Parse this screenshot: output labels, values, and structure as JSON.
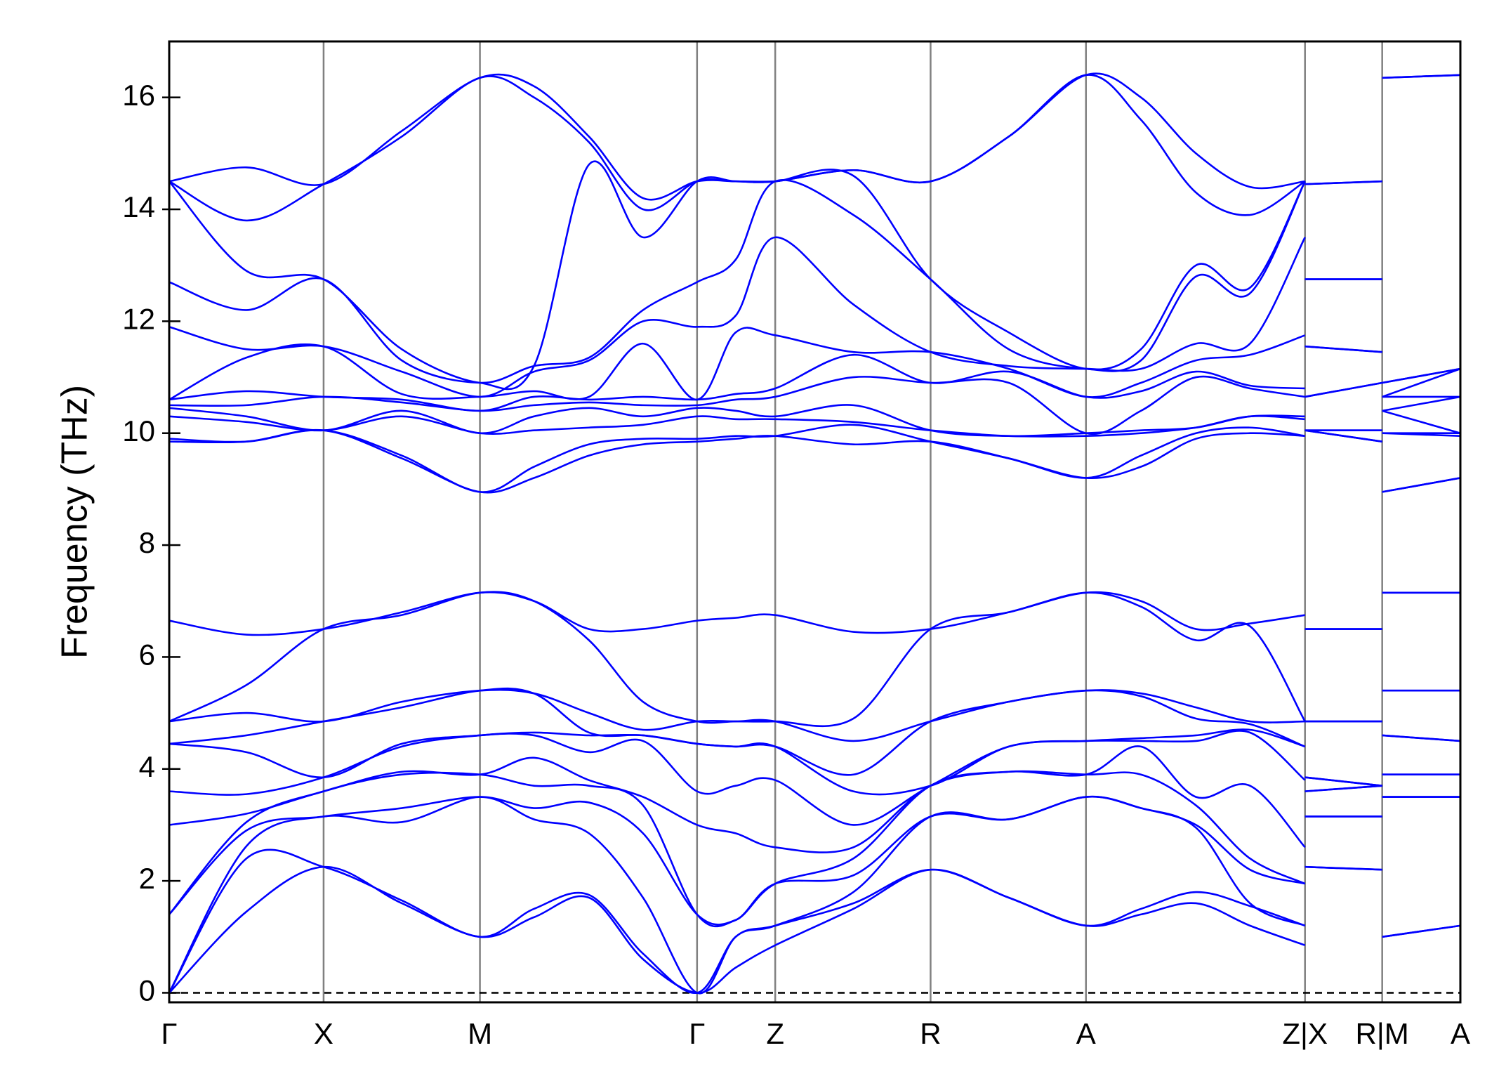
{
  "chart_data": {
    "type": "line",
    "y_label": "Frequency (THz)",
    "x": [
      0,
      0.8,
      1.6,
      2.41,
      3.22,
      3.78,
      4.35,
      4.91,
      5.47,
      5.87,
      6.28,
      7.09,
      7.89,
      8.7,
      9.5,
      10.07,
      10.64,
      11.2,
      11.77,
      11.77,
      11.77,
      12.57,
      12.57,
      12.57,
      13.38
    ],
    "xlim": [
      0,
      13.38
    ],
    "xticks": [
      {
        "value": 0,
        "label": "Γ"
      },
      {
        "value": 1.6,
        "label": "X"
      },
      {
        "value": 3.22,
        "label": "M"
      },
      {
        "value": 5.47,
        "label": "Γ"
      },
      {
        "value": 6.28,
        "label": "Z"
      },
      {
        "value": 7.89,
        "label": "R"
      },
      {
        "value": 9.5,
        "label": "A"
      },
      {
        "value": 11.77,
        "label": "Z|X"
      },
      {
        "value": 12.57,
        "label": "R|M"
      },
      {
        "value": 13.38,
        "label": "A"
      }
    ],
    "ylim": [
      -0.17,
      17.0
    ],
    "yticks": [
      0,
      2,
      4,
      6,
      8,
      10,
      12,
      14,
      16
    ],
    "xgrid": true,
    "grid_color": "#808080",
    "hlines": [
      {
        "value": 0,
        "style": "dashed",
        "color": "#000000"
      }
    ],
    "series": [
      {
        "color": "#0000ff",
        "values": [
          0,
          1.45,
          2.25,
          1.6,
          1,
          1.35,
          1.7,
          0.6,
          0,
          0.45,
          0.85,
          1.5,
          2.2,
          1.7,
          1.2,
          1.4,
          1.6,
          1.2,
          0.85,
          null,
          2.25,
          2.2,
          null,
          1,
          1.2
        ]
      },
      {
        "color": "#0000ff",
        "values": [
          0,
          2.4,
          2.25,
          1.65,
          1,
          1.5,
          1.75,
          0.7,
          0,
          1.0,
          1.2,
          1.6,
          2.2,
          1.7,
          1.2,
          1.5,
          1.8,
          1.55,
          1.2,
          null,
          2.25,
          2.2,
          null,
          1,
          1.2
        ]
      },
      {
        "color": "#0000ff",
        "values": [
          0,
          2.62,
          3.15,
          3.05,
          3.5,
          3.1,
          2.85,
          1.7,
          0,
          1.0,
          1.2,
          1.8,
          3.15,
          3.1,
          3.5,
          3.3,
          2.95,
          1.6,
          1.2,
          null,
          3.15,
          3.15,
          null,
          3.5,
          3.5
        ]
      },
      {
        "color": "#0000ff",
        "values": [
          1.4,
          2.9,
          3.15,
          3.3,
          3.5,
          3.3,
          3.4,
          2.85,
          1.4,
          1.3,
          1.95,
          2.1,
          3.15,
          3.1,
          3.5,
          3.3,
          3.0,
          2.2,
          1.95,
          null,
          3.15,
          3.15,
          null,
          3.5,
          3.5
        ]
      },
      {
        "color": "#0000ff",
        "values": [
          1.4,
          3.05,
          3.6,
          3.9,
          3.9,
          3.7,
          3.7,
          3.35,
          1.4,
          1.3,
          1.95,
          2.4,
          3.7,
          3.95,
          3.9,
          3.9,
          3.35,
          2.4,
          1.95,
          null,
          3.6,
          3.7,
          null,
          3.9,
          3.9
        ]
      },
      {
        "color": "#0000ff",
        "values": [
          3.0,
          3.2,
          3.6,
          3.95,
          3.9,
          4.2,
          3.8,
          3.5,
          3.0,
          2.85,
          2.6,
          2.6,
          3.7,
          3.95,
          3.9,
          4.4,
          3.5,
          3.7,
          2.6,
          null,
          3.6,
          3.7,
          null,
          3.9,
          3.9
        ]
      },
      {
        "color": "#0000ff",
        "values": [
          3.6,
          3.55,
          3.85,
          4.4,
          4.6,
          4.6,
          4.3,
          4.5,
          3.6,
          3.7,
          3.8,
          3.0,
          3.7,
          4.4,
          4.5,
          4.5,
          4.5,
          4.65,
          3.8,
          null,
          3.85,
          3.7,
          null,
          4.6,
          4.5
        ]
      },
      {
        "color": "#0000ff",
        "values": [
          4.45,
          4.3,
          3.85,
          4.45,
          4.6,
          4.65,
          4.6,
          4.6,
          4.45,
          4.4,
          4.4,
          3.6,
          3.7,
          4.4,
          4.5,
          4.55,
          4.6,
          4.7,
          4.4,
          null,
          3.85,
          3.7,
          null,
          4.6,
          4.5
        ]
      },
      {
        "color": "#0000ff",
        "values": [
          4.45,
          4.6,
          4.85,
          5.1,
          5.4,
          5.35,
          4.65,
          4.6,
          4.45,
          4.4,
          4.4,
          3.9,
          4.85,
          5.2,
          5.4,
          5.3,
          4.9,
          4.8,
          4.4,
          null,
          4.85,
          4.85,
          null,
          5.4,
          5.4
        ]
      },
      {
        "color": "#0000ff",
        "values": [
          4.85,
          5.0,
          4.85,
          5.2,
          5.4,
          5.35,
          5.0,
          4.7,
          4.85,
          4.85,
          4.85,
          4.5,
          4.85,
          5.2,
          5.4,
          5.35,
          5.1,
          4.85,
          4.85,
          null,
          4.85,
          4.85,
          null,
          5.4,
          5.4
        ]
      },
      {
        "color": "#0000ff",
        "values": [
          4.85,
          5.5,
          6.5,
          6.75,
          7.15,
          7.0,
          6.3,
          5.2,
          4.85,
          4.85,
          4.85,
          4.9,
          6.5,
          6.8,
          7.15,
          6.9,
          6.3,
          6.55,
          4.85,
          null,
          6.5,
          6.5,
          null,
          7.15,
          7.15
        ]
      },
      {
        "color": "#0000ff",
        "values": [
          6.65,
          6.4,
          6.5,
          6.8,
          7.15,
          7.0,
          6.5,
          6.5,
          6.65,
          6.7,
          6.75,
          6.45,
          6.5,
          6.8,
          7.15,
          7.0,
          6.5,
          6.6,
          6.75,
          null,
          6.5,
          6.5,
          null,
          7.15,
          7.15
        ]
      },
      {
        "color": "#0000ff",
        "values": [
          9.85,
          9.85,
          10.05,
          9.55,
          8.95,
          9.2,
          9.6,
          9.8,
          9.85,
          9.9,
          9.95,
          9.8,
          9.85,
          9.55,
          9.2,
          9.4,
          9.9,
          10.0,
          9.95,
          null,
          10.05,
          9.85,
          null,
          8.95,
          9.2
        ]
      },
      {
        "color": "#0000ff",
        "values": [
          9.9,
          9.85,
          10.05,
          9.6,
          8.95,
          9.4,
          9.8,
          9.9,
          9.9,
          9.95,
          9.95,
          10.15,
          9.85,
          9.55,
          9.2,
          9.6,
          10.0,
          10.1,
          9.95,
          null,
          10.05,
          9.85,
          null,
          8.95,
          9.2
        ]
      },
      {
        "color": "#0000ff",
        "values": [
          10.3,
          10.2,
          10.05,
          10.3,
          10,
          10.05,
          10.1,
          10.15,
          10.3,
          10.25,
          10.25,
          10.2,
          10.05,
          9.95,
          9.95,
          10.0,
          10.1,
          10.3,
          10.25,
          null,
          10.05,
          10.05,
          null,
          10,
          9.95
        ]
      },
      {
        "color": "#0000ff",
        "values": [
          10.45,
          10.3,
          10.05,
          10.4,
          10,
          10.3,
          10.45,
          10.3,
          10.45,
          10.4,
          10.3,
          10.5,
          10.05,
          9.95,
          10.0,
          10.05,
          10.1,
          10.3,
          10.3,
          null,
          10.05,
          10.05,
          null,
          10,
          10.0
        ]
      },
      {
        "color": "#0000ff",
        "values": [
          10.5,
          10.5,
          10.65,
          10.55,
          10.4,
          10.5,
          10.55,
          10.5,
          10.5,
          10.6,
          10.65,
          11.0,
          10.9,
          10.9,
          10.0,
          10.4,
          11.0,
          10.8,
          10.65,
          null,
          10.65,
          10.9,
          null,
          10.4,
          10.0
        ]
      },
      {
        "color": "#0000ff",
        "values": [
          10.6,
          10.75,
          10.65,
          10.6,
          10.4,
          10.65,
          10.6,
          10.65,
          10.6,
          10.7,
          10.8,
          11.4,
          10.9,
          11.1,
          10.65,
          10.75,
          11.1,
          10.85,
          10.8,
          null,
          10.65,
          10.9,
          null,
          10.4,
          10.65
        ]
      },
      {
        "color": "#0000ff",
        "values": [
          10.6,
          11.35,
          11.55,
          10.7,
          10.65,
          10.75,
          10.65,
          11.6,
          10.6,
          11.8,
          11.75,
          11.45,
          11.45,
          11.15,
          10.65,
          10.9,
          11.3,
          11.4,
          11.75,
          null,
          11.55,
          11.45,
          null,
          10.65,
          10.65
        ]
      },
      {
        "color": "#0000ff",
        "values": [
          11.9,
          11.5,
          11.55,
          11.1,
          10.65,
          11.1,
          11.3,
          12.0,
          11.9,
          12.1,
          13.5,
          12.3,
          11.45,
          11.2,
          11.15,
          11.15,
          11.6,
          11.6,
          13.5,
          null,
          11.55,
          11.45,
          null,
          10.65,
          11.15
        ]
      },
      {
        "color": "#0000ff",
        "values": [
          12.7,
          12.2,
          12.75,
          11.3,
          10.9,
          11.2,
          11.35,
          12.2,
          12.7,
          13.1,
          14.5,
          13.9,
          12.75,
          11.5,
          11.15,
          11.3,
          12.8,
          12.5,
          14.5,
          null,
          12.75,
          12.75,
          null,
          10.9,
          11.15
        ]
      },
      {
        "color": "#0000ff",
        "values": [
          14.5,
          12.9,
          12.75,
          11.5,
          10.9,
          11.2,
          14.8,
          13.5,
          14.5,
          14.5,
          14.5,
          14.6,
          12.75,
          11.8,
          11.15,
          11.5,
          13.0,
          12.6,
          14.5,
          null,
          12.75,
          12.75,
          null,
          10.9,
          11.15
        ]
      },
      {
        "color": "#0000ff",
        "values": [
          14.5,
          13.8,
          14.45,
          15.3,
          16.35,
          16.0,
          15.2,
          14.0,
          14.5,
          14.5,
          14.5,
          14.7,
          14.5,
          15.3,
          16.4,
          15.6,
          14.3,
          13.9,
          14.5,
          null,
          14.45,
          14.5,
          null,
          16.35,
          16.4
        ]
      },
      {
        "color": "#0000ff",
        "values": [
          14.5,
          14.75,
          14.45,
          15.4,
          16.35,
          16.2,
          15.3,
          14.2,
          14.5,
          14.5,
          14.5,
          14.7,
          14.5,
          15.3,
          16.4,
          16.0,
          15.0,
          14.4,
          14.5,
          null,
          14.45,
          14.5,
          null,
          16.35,
          16.4
        ]
      }
    ]
  }
}
